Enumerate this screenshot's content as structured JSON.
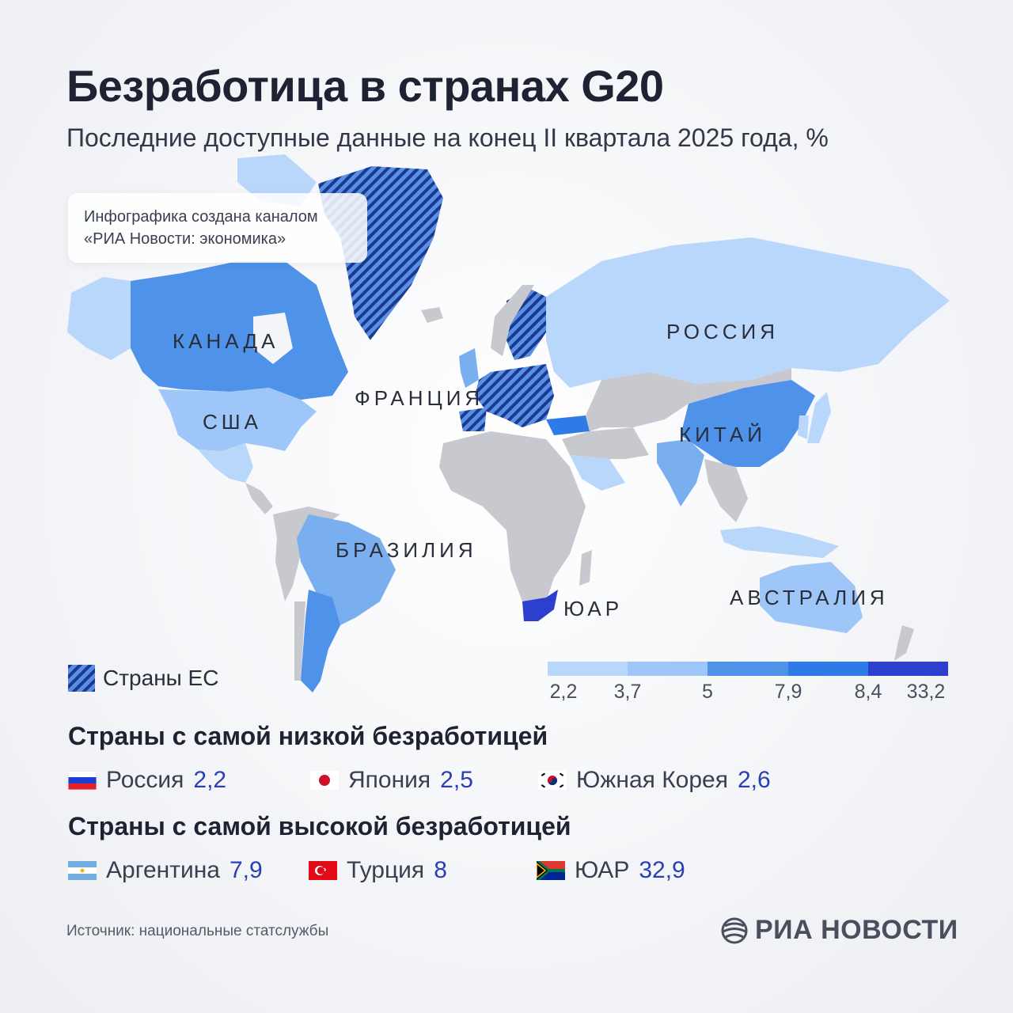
{
  "title": "Безработица в странах G20",
  "subtitle": "Последние доступные данные на конец II квартала 2025 года, %",
  "credit": {
    "line1": "Инфографика создана каналом",
    "line2": "«РИА Новости: экономика»"
  },
  "colors": {
    "c1": "#b9d6fb",
    "c2": "#9fc6f8",
    "c3": "#7aafef",
    "c4": "#4f92ea",
    "c5": "#2d7be6",
    "c6": "#2c3fcf",
    "other": "#c8c9ce",
    "eu_hatch": "#1b3a8f"
  },
  "map_labels": {
    "canada": "КАНАДА",
    "usa": "США",
    "france": "ФРАНЦИЯ",
    "russia": "РОССИЯ",
    "china": "КИТАЙ",
    "brazil": "БРАЗИЛИЯ",
    "south_africa": "ЮАР",
    "australia": "АВСТРАЛИЯ"
  },
  "eu_legend": "Страны ЕС",
  "scale": {
    "ticks": [
      "2,2",
      "3,7",
      "5",
      "7,9",
      "8,4",
      "33,2"
    ]
  },
  "lowest": {
    "title": "Страны с самой низкой безработицей",
    "items": [
      {
        "country": "Россия",
        "value": "2,2",
        "flag": "russia-flag"
      },
      {
        "country": "Япония",
        "value": "2,5",
        "flag": "japan-flag"
      },
      {
        "country": "Южная Корея",
        "value": "2,6",
        "flag": "south-korea-flag"
      }
    ]
  },
  "highest": {
    "title": "Страны с самой высокой безработицей",
    "items": [
      {
        "country": "Аргентина",
        "value": "7,9",
        "flag": "argentina-flag"
      },
      {
        "country": "Турция",
        "value": "8",
        "flag": "turkey-flag"
      },
      {
        "country": "ЮАР",
        "value": "32,9",
        "flag": "south-africa-flag"
      }
    ]
  },
  "source": "Источник: национальные статслужбы",
  "logo": "РИА НОВОСТИ"
}
